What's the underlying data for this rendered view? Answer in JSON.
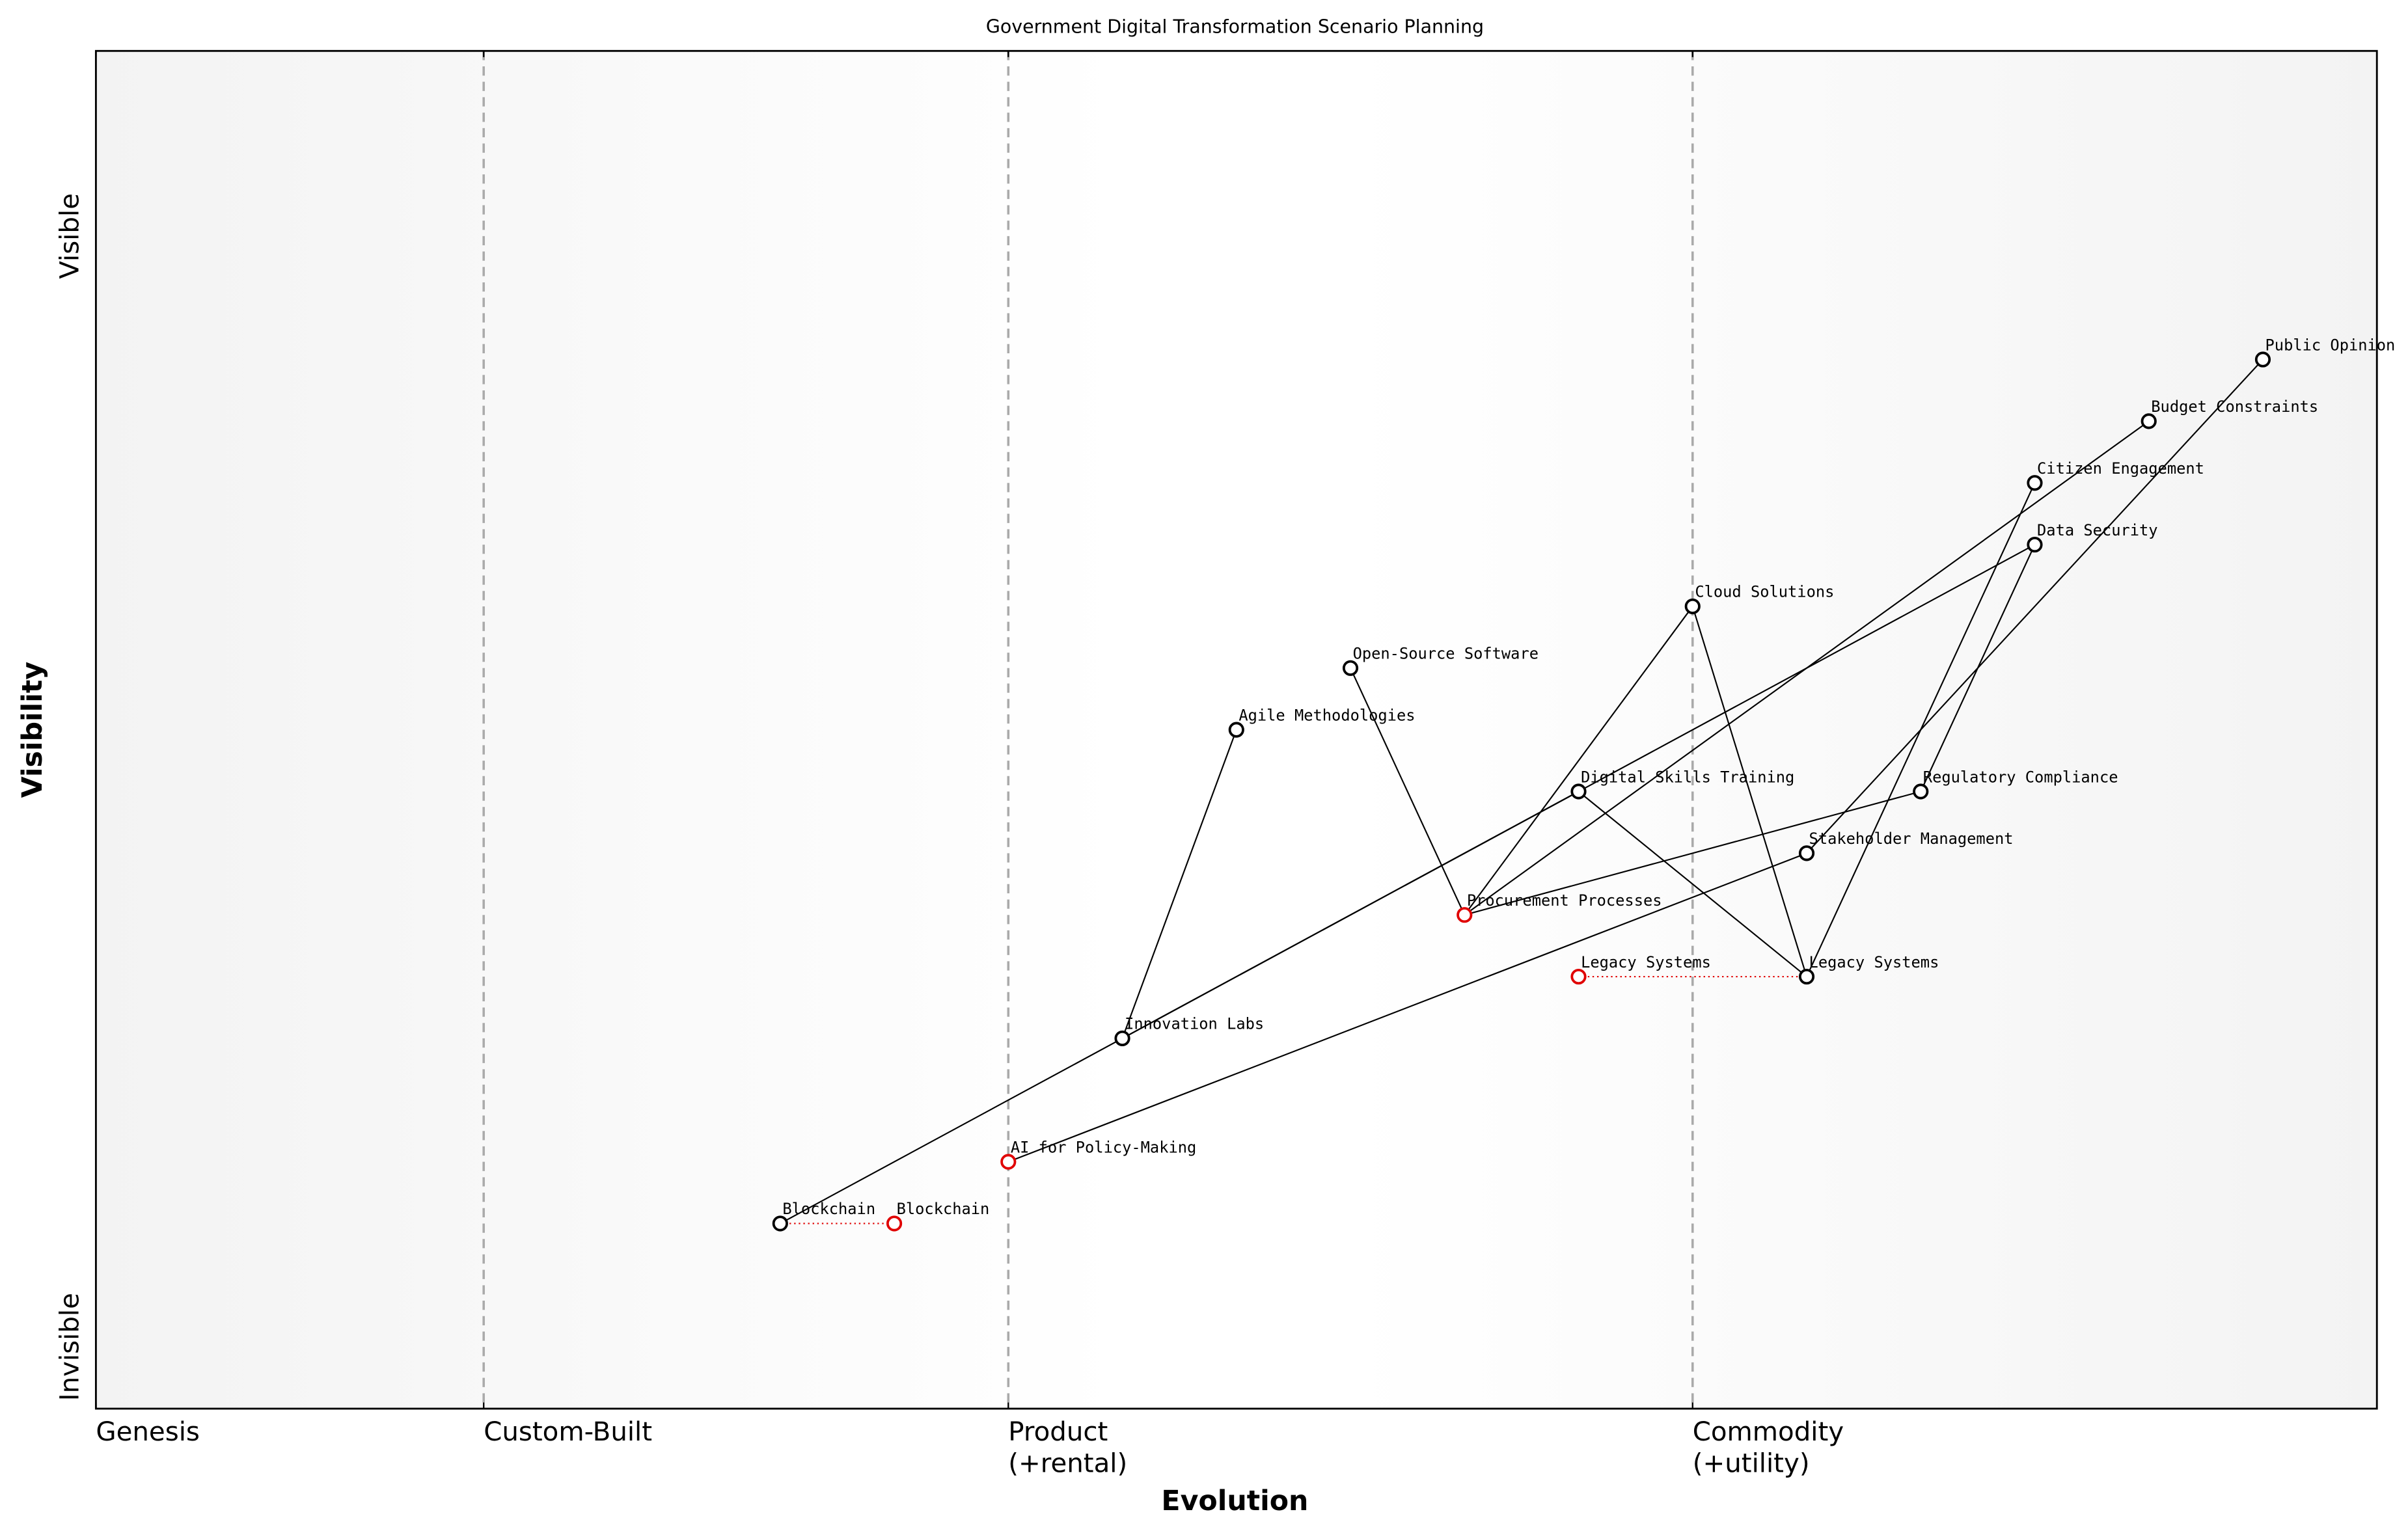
{
  "chart_data": {
    "type": "wardley",
    "title": "Government Digital Transformation Scenario Planning",
    "x_label": "Evolution",
    "y_label": "Visibility",
    "xlim": [
      0,
      1
    ],
    "ylim": [
      -0.05,
      1.05
    ],
    "xticks": [
      {
        "value": 0,
        "label": "Genesis"
      },
      {
        "value": 0.17,
        "label": "Custom-Built"
      },
      {
        "value": 0.4,
        "label": "Product\n(+rental)"
      },
      {
        "value": 0.7,
        "label": "Commodity\n(+utility)"
      }
    ],
    "yticks": [
      {
        "value": 0,
        "label": "Invisible"
      },
      {
        "value": 0.9,
        "label": "Visible"
      }
    ],
    "nodes": [
      {
        "name": "Public Opinion",
        "x": 0.95,
        "y": 0.8,
        "color": "#000000"
      },
      {
        "name": "Budget Constraints",
        "x": 0.9,
        "y": 0.75,
        "color": "#000000"
      },
      {
        "name": "Citizen Engagement",
        "x": 0.85,
        "y": 0.7,
        "color": "#000000"
      },
      {
        "name": "Data Security",
        "x": 0.85,
        "y": 0.65,
        "color": "#000000"
      },
      {
        "name": "Cloud Solutions",
        "x": 0.7,
        "y": 0.6,
        "color": "#000000"
      },
      {
        "name": "Open-Source Software",
        "x": 0.55,
        "y": 0.55,
        "color": "#000000"
      },
      {
        "name": "Agile Methodologies",
        "x": 0.5,
        "y": 0.5,
        "color": "#000000"
      },
      {
        "name": "Digital Skills Training",
        "x": 0.65,
        "y": 0.45,
        "color": "#000000"
      },
      {
        "name": "Regulatory Compliance",
        "x": 0.8,
        "y": 0.45,
        "color": "#000000"
      },
      {
        "name": "Stakeholder Management",
        "x": 0.75,
        "y": 0.4,
        "color": "#000000"
      },
      {
        "name": "Procurement Processes",
        "x": 0.6,
        "y": 0.35,
        "color": "#e00000"
      },
      {
        "name": "Legacy Systems",
        "x": 0.75,
        "y": 0.3,
        "color": "#000000"
      },
      {
        "name": "Legacy Systems",
        "x": 0.65,
        "y": 0.3,
        "color": "#e00000"
      },
      {
        "name": "Innovation Labs",
        "x": 0.45,
        "y": 0.25,
        "color": "#000000"
      },
      {
        "name": "AI for Policy-Making",
        "x": 0.4,
        "y": 0.15,
        "color": "#e00000"
      },
      {
        "name": "Blockchain",
        "x": 0.3,
        "y": 0.1,
        "color": "#000000"
      },
      {
        "name": "Blockchain",
        "x": 0.35,
        "y": 0.1,
        "color": "#e00000"
      }
    ],
    "links": [
      [
        15,
        3
      ],
      [
        13,
        7
      ],
      [
        13,
        6
      ],
      [
        5,
        10
      ],
      [
        10,
        4
      ],
      [
        10,
        1
      ],
      [
        10,
        8
      ],
      [
        4,
        11
      ],
      [
        7,
        11
      ],
      [
        11,
        2
      ],
      [
        8,
        3
      ],
      [
        14,
        9
      ],
      [
        9,
        0
      ]
    ],
    "evolutions": [
      [
        15,
        16
      ],
      [
        12,
        11
      ]
    ]
  }
}
